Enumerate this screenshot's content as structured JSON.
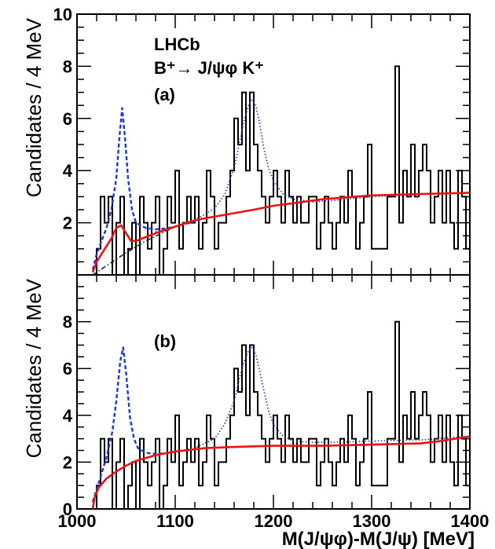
{
  "chart_data": {
    "type": "step-histogram with fit curves",
    "x_axis": {
      "label": "M(J/ψφ)-M(J/ψ) [MeV]",
      "range": [
        1000,
        1400
      ],
      "tick_labels": [
        "1000",
        "1100",
        "1200",
        "1300",
        "1400"
      ]
    },
    "bin_edges_start": 1016,
    "bin_width": 4,
    "panels": [
      {
        "id": "a",
        "panel_label": "(a)",
        "experiment": "LHCb",
        "decay": "B⁺→ J/ψφ K⁺",
        "ylabel": "Candidates / 4 MeV",
        "ylim": [
          0,
          10
        ],
        "y_tick_labels": [
          "2",
          "4",
          "6",
          "8",
          "10"
        ],
        "histogram_counts": [
          0,
          1,
          3,
          2,
          3,
          0,
          2,
          3,
          0,
          1,
          2,
          0,
          3,
          2,
          1,
          2,
          3,
          0,
          1,
          3,
          2,
          4,
          1,
          2,
          3,
          2,
          3,
          1,
          2,
          4,
          3,
          1,
          2,
          2,
          3,
          4,
          6,
          5,
          7,
          4,
          7,
          5,
          4,
          3,
          2,
          3,
          4,
          3,
          2,
          4,
          3,
          2,
          3,
          2,
          2,
          3,
          3,
          1,
          2,
          3,
          2,
          1,
          2,
          3,
          2,
          4,
          3,
          1,
          2,
          3,
          5,
          1,
          1,
          1,
          1,
          3,
          3,
          8,
          2,
          4,
          3,
          5,
          3,
          4,
          5,
          4,
          2,
          3,
          4,
          2,
          4,
          2,
          1,
          4,
          3,
          1
        ],
        "curves": [
          {
            "name": "total fit",
            "style": "solid",
            "color": "#ee1111",
            "x": [
              1016,
              1020,
              1025,
              1030,
              1035,
              1040,
              1045,
              1050,
              1055,
              1060,
              1070,
              1080,
              1100,
              1120,
              1150,
              1180,
              1200,
              1250,
              1300,
              1350,
              1400
            ],
            "y": [
              0.1,
              0.5,
              0.8,
              1.1,
              1.4,
              1.8,
              1.9,
              1.6,
              1.3,
              1.3,
              1.45,
              1.6,
              1.85,
              2.1,
              2.3,
              2.5,
              2.65,
              2.9,
              3.05,
              3.1,
              3.15
            ]
          },
          {
            "name": "signal peak contribution",
            "style": "dashed",
            "color": "#1a35e8",
            "x": [
              1016,
              1020,
              1030,
              1035,
              1040,
              1043,
              1046,
              1049,
              1052,
              1056,
              1060,
              1070,
              1080,
              1090,
              1100,
              1110,
              1120
            ],
            "y": [
              0.2,
              0.8,
              1.8,
              2.5,
              3.7,
              5.2,
              6.4,
              5.2,
              3.7,
              2.5,
              2.0,
              1.8,
              1.75,
              1.78,
              1.85,
              1.95,
              2.05
            ]
          },
          {
            "name": "background (phase space)",
            "style": "dash-dot",
            "color": "#222222",
            "x": [
              1016,
              1030,
              1050,
              1070,
              1100
            ],
            "y": [
              0.0,
              0.35,
              0.85,
              1.3,
              1.85
            ]
          },
          {
            "name": "second peak contribution",
            "style": "dotted",
            "color": "#2a42c8",
            "x": [
              1080,
              1100,
              1120,
              1140,
              1150,
              1160,
              1165,
              1170,
              1175,
              1178,
              1182,
              1186,
              1190,
              1195,
              1200,
              1210,
              1220,
              1240,
              1260,
              1300,
              1350,
              1400
            ],
            "y": [
              1.65,
              1.85,
              2.1,
              2.55,
              3.05,
              4.1,
              5.0,
              5.9,
              6.55,
              6.7,
              6.5,
              5.8,
              4.9,
              4.1,
              3.6,
              3.1,
              2.9,
              2.8,
              2.85,
              3.0,
              3.1,
              3.15
            ]
          }
        ]
      },
      {
        "id": "b",
        "panel_label": "(b)",
        "ylabel": "Candidates / 4 MeV",
        "ylim": [
          0,
          10
        ],
        "y_tick_labels": [
          "0",
          "2",
          "4",
          "6",
          "8"
        ],
        "histogram_counts": [
          0,
          1,
          3,
          2,
          3,
          0,
          2,
          3,
          0,
          1,
          2,
          0,
          3,
          2,
          1,
          2,
          3,
          0,
          1,
          3,
          2,
          4,
          1,
          2,
          3,
          2,
          3,
          1,
          2,
          4,
          3,
          1,
          2,
          2,
          3,
          4,
          6,
          5,
          7,
          4,
          7,
          5,
          4,
          3,
          2,
          3,
          4,
          3,
          2,
          4,
          3,
          2,
          3,
          2,
          2,
          3,
          3,
          1,
          2,
          3,
          2,
          1,
          2,
          3,
          2,
          4,
          3,
          1,
          2,
          3,
          5,
          1,
          1,
          1,
          1,
          3,
          3,
          8,
          2,
          4,
          3,
          5,
          3,
          4,
          5,
          4,
          2,
          3,
          4,
          2,
          4,
          2,
          1,
          4,
          3,
          1
        ],
        "curves": [
          {
            "name": "total fit",
            "style": "solid",
            "color": "#ee1111",
            "x": [
              1016,
              1018,
              1022,
              1030,
              1040,
              1050,
              1060,
              1080,
              1100,
              1130,
              1160,
              1200,
              1250,
              1300,
              1350,
              1370,
              1400
            ],
            "y": [
              0.0,
              0.5,
              0.9,
              1.3,
              1.6,
              1.85,
              2.05,
              2.3,
              2.45,
              2.6,
              2.65,
              2.7,
              2.7,
              2.75,
              2.8,
              2.9,
              3.1
            ]
          },
          {
            "name": "signal peak contribution",
            "style": "dashed",
            "color": "#1a35e8",
            "x": [
              1016,
              1022,
              1030,
              1036,
              1040,
              1044,
              1047,
              1050,
              1054,
              1058,
              1062,
              1070,
              1080,
              1090,
              1100,
              1110
            ],
            "y": [
              0.3,
              1.1,
              2.2,
              3.3,
              4.6,
              6.3,
              6.9,
              5.8,
              3.9,
              3.0,
              2.6,
              2.4,
              2.35,
              2.38,
              2.45,
              2.5
            ]
          },
          {
            "name": "second peak contribution",
            "style": "dotted",
            "color": "#2a42c8",
            "x": [
              1100,
              1120,
              1140,
              1150,
              1160,
              1165,
              1170,
              1175,
              1178,
              1182,
              1186,
              1190,
              1195,
              1200,
              1210,
              1220,
              1240,
              1260,
              1300,
              1350,
              1400
            ],
            "y": [
              2.45,
              2.6,
              3.0,
              3.6,
              4.6,
              5.5,
              6.3,
              6.8,
              6.9,
              6.6,
              5.9,
              5.1,
              4.2,
              3.6,
              3.1,
              2.9,
              2.85,
              2.85,
              2.9,
              2.95,
              3.1
            ]
          }
        ]
      }
    ]
  }
}
